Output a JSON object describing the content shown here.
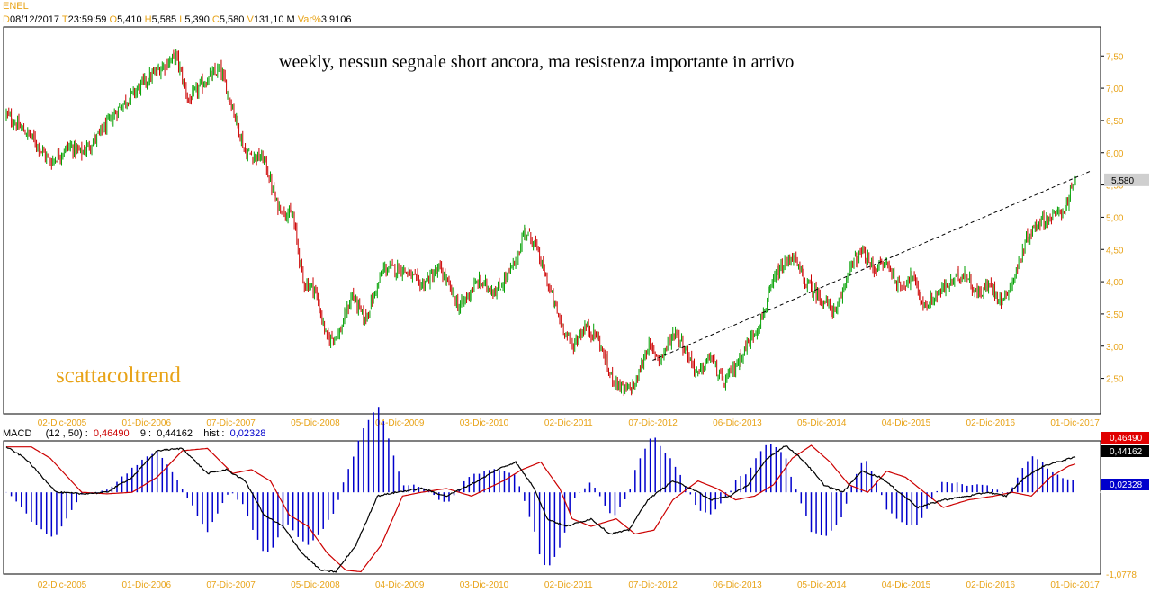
{
  "ticker": "ENEL",
  "ohlc_header": {
    "d_label": "D",
    "date": "08/12/2017",
    "t_label": "T",
    "time": "23:59:59",
    "o_label": "O",
    "open": "5,410",
    "h_label": "H",
    "high": "5,585",
    "l_label": "L",
    "low": "5,390",
    "c_label": "C",
    "close": "5,580",
    "v_label": "V",
    "volume": "131,10 M",
    "var_label": "Var%",
    "var": "3,9106"
  },
  "annotation": "weekly, nessun segnale short ancora, ma resistenza importante in arrivo",
  "watermark": "scattacoltrend",
  "macd_header": {
    "label": "MACD",
    "params": "(12 , 50)",
    "macd": "0,46490",
    "signal_label": "9",
    "signal": "0,44162",
    "hist_label": "hist",
    "hist": "0,02328"
  },
  "colors": {
    "up": "#00a000",
    "down": "#cc0000",
    "axis": "#e8a317",
    "macd_line": "#000000",
    "signal_line": "#cc0000",
    "hist": "#0000cc"
  },
  "chart_data": [
    {
      "type": "candlestick",
      "title": "ENEL",
      "x_ticks": [
        "02-Dic-2005",
        "01-Dic-2006",
        "07-Dic-2007",
        "05-Dic-2008",
        "04-Dic-2009",
        "03-Dic-2010",
        "02-Dic-2011",
        "07-Dic-2012",
        "06-Dic-2013",
        "05-Dic-2014",
        "04-Dic-2015",
        "02-Dic-2016",
        "01-Dic-2017"
      ],
      "y_ticks": [
        "2,50",
        "3,00",
        "3,50",
        "4,00",
        "4,50",
        "5,00",
        "5,50",
        "6,00",
        "6,50",
        "7,00",
        "7,50"
      ],
      "ylim": [
        1.95,
        7.95
      ],
      "last_price_label": "5,580",
      "last_price": 5.58,
      "close_anchors": [
        {
          "t": 0,
          "v": 6.6
        },
        {
          "t": 10,
          "v": 6.4
        },
        {
          "t": 20,
          "v": 6.25
        },
        {
          "t": 35,
          "v": 5.85
        },
        {
          "t": 50,
          "v": 6.1
        },
        {
          "t": 60,
          "v": 6.0
        },
        {
          "t": 75,
          "v": 6.3
        },
        {
          "t": 90,
          "v": 6.7
        },
        {
          "t": 110,
          "v": 7.1
        },
        {
          "t": 125,
          "v": 7.35
        },
        {
          "t": 135,
          "v": 7.5
        },
        {
          "t": 145,
          "v": 6.8
        },
        {
          "t": 155,
          "v": 7.05
        },
        {
          "t": 170,
          "v": 7.3
        },
        {
          "t": 180,
          "v": 6.7
        },
        {
          "t": 190,
          "v": 6.0
        },
        {
          "t": 205,
          "v": 5.9
        },
        {
          "t": 215,
          "v": 5.2
        },
        {
          "t": 228,
          "v": 5.0
        },
        {
          "t": 236,
          "v": 4.0
        },
        {
          "t": 245,
          "v": 3.9
        },
        {
          "t": 255,
          "v": 3.1
        },
        {
          "t": 265,
          "v": 3.2
        },
        {
          "t": 275,
          "v": 3.8
        },
        {
          "t": 285,
          "v": 3.4
        },
        {
          "t": 300,
          "v": 4.2
        },
        {
          "t": 315,
          "v": 4.2
        },
        {
          "t": 330,
          "v": 3.95
        },
        {
          "t": 345,
          "v": 4.2
        },
        {
          "t": 360,
          "v": 3.6
        },
        {
          "t": 375,
          "v": 4.0
        },
        {
          "t": 390,
          "v": 3.85
        },
        {
          "t": 405,
          "v": 4.3
        },
        {
          "t": 412,
          "v": 4.8
        },
        {
          "t": 420,
          "v": 4.6
        },
        {
          "t": 430,
          "v": 4.0
        },
        {
          "t": 440,
          "v": 3.4
        },
        {
          "t": 450,
          "v": 3.0
        },
        {
          "t": 460,
          "v": 3.3
        },
        {
          "t": 470,
          "v": 3.15
        },
        {
          "t": 480,
          "v": 2.55
        },
        {
          "t": 492,
          "v": 2.3
        },
        {
          "t": 500,
          "v": 2.4
        },
        {
          "t": 510,
          "v": 3.0
        },
        {
          "t": 520,
          "v": 2.8
        },
        {
          "t": 532,
          "v": 3.25
        },
        {
          "t": 540,
          "v": 2.95
        },
        {
          "t": 550,
          "v": 2.55
        },
        {
          "t": 560,
          "v": 2.85
        },
        {
          "t": 570,
          "v": 2.4
        },
        {
          "t": 580,
          "v": 2.7
        },
        {
          "t": 590,
          "v": 3.05
        },
        {
          "t": 600,
          "v": 3.4
        },
        {
          "t": 612,
          "v": 4.1
        },
        {
          "t": 625,
          "v": 4.4
        },
        {
          "t": 635,
          "v": 4.0
        },
        {
          "t": 645,
          "v": 3.8
        },
        {
          "t": 660,
          "v": 3.5
        },
        {
          "t": 670,
          "v": 4.2
        },
        {
          "t": 680,
          "v": 4.45
        },
        {
          "t": 690,
          "v": 4.2
        },
        {
          "t": 700,
          "v": 4.3
        },
        {
          "t": 710,
          "v": 3.9
        },
        {
          "t": 720,
          "v": 4.1
        },
        {
          "t": 730,
          "v": 3.6
        },
        {
          "t": 740,
          "v": 3.8
        },
        {
          "t": 752,
          "v": 4.0
        },
        {
          "t": 762,
          "v": 4.15
        },
        {
          "t": 772,
          "v": 3.8
        },
        {
          "t": 782,
          "v": 3.95
        },
        {
          "t": 792,
          "v": 3.7
        },
        {
          "t": 802,
          "v": 4.1
        },
        {
          "t": 812,
          "v": 4.7
        },
        {
          "t": 822,
          "v": 4.95
        },
        {
          "t": 832,
          "v": 5.0
        },
        {
          "t": 842,
          "v": 5.15
        },
        {
          "t": 850,
          "v": 5.58
        }
      ],
      "trendline": {
        "from": {
          "t": 255,
          "v": 2.78
        },
        "to": {
          "t": 850,
          "v": 5.75
        }
      }
    },
    {
      "type": "line",
      "title": "MACD (12 , 50)",
      "series": [
        {
          "name": "MACD",
          "color": "#000000"
        },
        {
          "name": "9",
          "color": "#cc0000"
        },
        {
          "name": "hist",
          "color": "#0000cc"
        }
      ],
      "y_label_bottom": "-1,0778",
      "ylim": [
        -1.08,
        0.68
      ],
      "macd_anchors": [
        {
          "t": 0,
          "v": 0.6
        },
        {
          "t": 15,
          "v": 0.45
        },
        {
          "t": 40,
          "v": 0.0
        },
        {
          "t": 60,
          "v": -0.02
        },
        {
          "t": 80,
          "v": 0.0
        },
        {
          "t": 100,
          "v": 0.2
        },
        {
          "t": 120,
          "v": 0.55
        },
        {
          "t": 140,
          "v": 0.58
        },
        {
          "t": 160,
          "v": 0.25
        },
        {
          "t": 175,
          "v": 0.3
        },
        {
          "t": 190,
          "v": 0.15
        },
        {
          "t": 205,
          "v": -0.3
        },
        {
          "t": 220,
          "v": -0.45
        },
        {
          "t": 235,
          "v": -0.8
        },
        {
          "t": 250,
          "v": -1.03
        },
        {
          "t": 262,
          "v": -1.05
        },
        {
          "t": 278,
          "v": -0.7
        },
        {
          "t": 295,
          "v": -0.05
        },
        {
          "t": 310,
          "v": 0.0
        },
        {
          "t": 330,
          "v": 0.05
        },
        {
          "t": 350,
          "v": -0.05
        },
        {
          "t": 375,
          "v": 0.15
        },
        {
          "t": 390,
          "v": 0.3
        },
        {
          "t": 405,
          "v": 0.4
        },
        {
          "t": 420,
          "v": 0.05
        },
        {
          "t": 430,
          "v": -0.35
        },
        {
          "t": 445,
          "v": -0.45
        },
        {
          "t": 465,
          "v": -0.35
        },
        {
          "t": 480,
          "v": -0.55
        },
        {
          "t": 495,
          "v": -0.5
        },
        {
          "t": 510,
          "v": -0.1
        },
        {
          "t": 530,
          "v": 0.15
        },
        {
          "t": 545,
          "v": 0.05
        },
        {
          "t": 560,
          "v": -0.1
        },
        {
          "t": 575,
          "v": -0.05
        },
        {
          "t": 590,
          "v": 0.1
        },
        {
          "t": 605,
          "v": 0.45
        },
        {
          "t": 620,
          "v": 0.62
        },
        {
          "t": 635,
          "v": 0.4
        },
        {
          "t": 650,
          "v": 0.1
        },
        {
          "t": 665,
          "v": 0.0
        },
        {
          "t": 680,
          "v": 0.28
        },
        {
          "t": 695,
          "v": 0.2
        },
        {
          "t": 710,
          "v": 0.0
        },
        {
          "t": 725,
          "v": -0.2
        },
        {
          "t": 745,
          "v": -0.1
        },
        {
          "t": 765,
          "v": -0.05
        },
        {
          "t": 780,
          "v": 0.0
        },
        {
          "t": 795,
          "v": -0.05
        },
        {
          "t": 810,
          "v": 0.2
        },
        {
          "t": 825,
          "v": 0.35
        },
        {
          "t": 840,
          "v": 0.42
        },
        {
          "t": 850,
          "v": 0.465
        }
      ],
      "signal_lag": 5,
      "last_values": {
        "macd": "0,46490",
        "signal": "0,44162",
        "hist": "0,02328"
      }
    }
  ]
}
